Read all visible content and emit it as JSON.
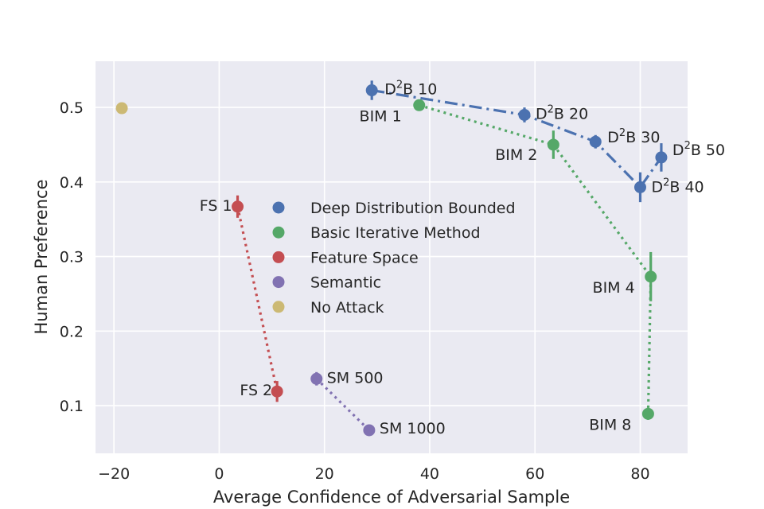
{
  "chart_data": {
    "type": "scatter",
    "xlabel": "Average Confidence of Adversarial Sample",
    "ylabel": "Human Preference",
    "xlim": [
      -23.5,
      89
    ],
    "ylim": [
      0.036,
      0.562
    ],
    "xticks": [
      -20,
      0,
      20,
      40,
      60,
      80
    ],
    "xtick_labels": [
      "−20",
      "0",
      "20",
      "40",
      "60",
      "80"
    ],
    "yticks": [
      0.1,
      0.2,
      0.3,
      0.4,
      0.5
    ],
    "ytick_labels": [
      "0.1",
      "0.2",
      "0.3",
      "0.4",
      "0.5"
    ],
    "grid": true,
    "legend_position": "center-left",
    "series": [
      {
        "name": "Deep Distribution Bounded",
        "color": "#4c72b0",
        "line_style": "dashdot",
        "points": [
          {
            "x": 29,
            "y": 0.523,
            "err": 0.013,
            "label_pre": "D",
            "label_sup": "2",
            "label_post": "B 10",
            "anchor": "start",
            "dx": 16,
            "dy": -1
          },
          {
            "x": 58,
            "y": 0.49,
            "err": 0.01,
            "label_pre": "D",
            "label_sup": "2",
            "label_post": "B 20",
            "anchor": "start",
            "dx": 14,
            "dy": -1
          },
          {
            "x": 71.5,
            "y": 0.454,
            "err": 0.009,
            "label_pre": "D",
            "label_sup": "2",
            "label_post": "B 30",
            "anchor": "start",
            "dx": 15,
            "dy": -5
          },
          {
            "x": 80,
            "y": 0.393,
            "err": 0.02,
            "label_pre": "D",
            "label_sup": "2",
            "label_post": "B 40",
            "anchor": "start",
            "dx": 14,
            "dy": 0
          },
          {
            "x": 84,
            "y": 0.433,
            "err": 0.019,
            "label_pre": "D",
            "label_sup": "2",
            "label_post": "B 50",
            "anchor": "start",
            "dx": 14,
            "dy": -9
          }
        ]
      },
      {
        "name": "Basic Iterative Method",
        "color": "#55a868",
        "line_style": "dotted",
        "points": [
          {
            "x": 38,
            "y": 0.503,
            "err": 0.007,
            "label": "BIM 1",
            "anchor": "end",
            "dx": -22,
            "dy": 14
          },
          {
            "x": 63.5,
            "y": 0.45,
            "err": 0.019,
            "label": "BIM 2",
            "anchor": "end",
            "dx": -20,
            "dy": 13
          },
          {
            "x": 82,
            "y": 0.273,
            "err": 0.033,
            "label": "BIM 4",
            "anchor": "end",
            "dx": -20,
            "dy": 14
          },
          {
            "x": 81.5,
            "y": 0.089,
            "err": 0.008,
            "label": "BIM 8",
            "anchor": "end",
            "dx": -21,
            "dy": 14
          }
        ]
      },
      {
        "name": "Feature Space",
        "color": "#c44e52",
        "line_style": "dotted",
        "points": [
          {
            "x": 3.5,
            "y": 0.367,
            "err": 0.015,
            "label": "FS 1",
            "anchor": "end",
            "dx": -7,
            "dy": -1
          },
          {
            "x": 11,
            "y": 0.119,
            "err": 0.014,
            "label": "FS 2",
            "anchor": "end",
            "dx": -6,
            "dy": -1
          }
        ]
      },
      {
        "name": "Semantic",
        "color": "#8172b2",
        "line_style": "dotted",
        "points": [
          {
            "x": 18.5,
            "y": 0.136,
            "err": 0.009,
            "label": "SM 500",
            "anchor": "start",
            "dx": 13,
            "dy": -1
          },
          {
            "x": 28.5,
            "y": 0.067,
            "err": 0.004,
            "label": "SM 1000",
            "anchor": "start",
            "dx": 13,
            "dy": -2
          }
        ]
      },
      {
        "name": "No Attack",
        "color": "#ccb974",
        "line_style": "none",
        "points": [
          {
            "x": -18.5,
            "y": 0.499,
            "err": 0,
            "label": ""
          }
        ]
      }
    ]
  }
}
